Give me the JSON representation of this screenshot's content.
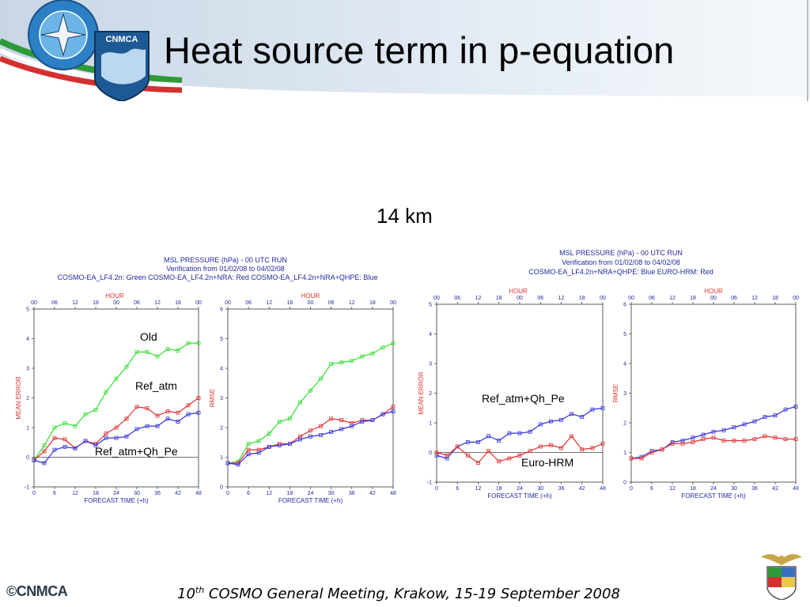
{
  "slide": {
    "title": "Heat source term in p-equation",
    "subtitle": "14 km",
    "logo_text": "CNMCA",
    "copyright": "©CNMCA",
    "footer_ordinal": "10",
    "footer_sup": "th",
    "footer_rest": " COSMO General Meeting, Krakow,  15-19 September 2008"
  },
  "panels": {
    "left": {
      "caption": [
        "MSL PRESSURE (hPa) - 00 UTC RUN",
        "Verification from 01/02/08 to 04/02/08",
        "COSMO-EA_LF4.2n: Green  COSMO-EA_LF4.2n+NRA: Red  COSMO-EA_LF4.2n+NRA+QHPE: Blue"
      ],
      "annotations": [
        "Old",
        "Ref_atm",
        "Ref_atm+Qh_Pe"
      ]
    },
    "right": {
      "caption": [
        "MSL PRESSURE (hPa) - 00 UTC RUN",
        "Verification from 01/02/08 to 04/02/08",
        "COSMO-EA_LF4.2n+NRA+QHPE: Blue  EURO-HRM: Red"
      ],
      "annotations": [
        "Ref_atm+Qh_Pe",
        "Euro-HRM"
      ]
    }
  },
  "colors": {
    "green": "#33dd33",
    "red": "#e03030",
    "blue": "#3333dd",
    "axis_label": "#e03030",
    "tick_label": "#1f2aa0"
  },
  "chart_data": [
    {
      "type": "line",
      "title": "",
      "xlabel": "FORECAST TIME (+h)",
      "top_label": "HOUR",
      "ylabel": "MEAN ERROR",
      "x": [
        0,
        3,
        6,
        9,
        12,
        15,
        18,
        21,
        24,
        27,
        30,
        33,
        36,
        39,
        42,
        45,
        48
      ],
      "xticks": [
        "0",
        "6",
        "12",
        "18",
        "24",
        "30",
        "36",
        "42",
        "48"
      ],
      "top_ticks": [
        "00",
        "06",
        "12",
        "18",
        "00",
        "06",
        "12",
        "18",
        "00"
      ],
      "ylim": [
        -1,
        5
      ],
      "yticks": [
        "-1",
        "0",
        "1",
        "2",
        "3",
        "4",
        "5"
      ],
      "zero_line": true,
      "series": [
        {
          "name": "COSMO-EA_LF4.2n",
          "color": "green",
          "values": [
            -0.1,
            0.4,
            1.0,
            1.15,
            1.05,
            1.45,
            1.6,
            2.2,
            2.65,
            3.05,
            3.55,
            3.55,
            3.4,
            3.65,
            3.6,
            3.85,
            3.85
          ]
        },
        {
          "name": "COSMO-EA_LF4.2n+NRA",
          "color": "red",
          "values": [
            -0.1,
            0.2,
            0.65,
            0.6,
            0.3,
            0.55,
            0.45,
            0.8,
            1.0,
            1.3,
            1.7,
            1.65,
            1.4,
            1.55,
            1.5,
            1.75,
            2.0
          ]
        },
        {
          "name": "COSMO-EA_LF4.2n+NRA+QHPE",
          "color": "blue",
          "values": [
            -0.1,
            -0.2,
            0.25,
            0.35,
            0.3,
            0.55,
            0.4,
            0.65,
            0.65,
            0.7,
            0.95,
            1.05,
            1.05,
            1.3,
            1.2,
            1.45,
            1.5
          ]
        }
      ]
    },
    {
      "type": "line",
      "title": "",
      "xlabel": "FORECAST TIME (+h)",
      "top_label": "HOUR",
      "ylabel": "RMSE",
      "x": [
        0,
        3,
        6,
        9,
        12,
        15,
        18,
        21,
        24,
        27,
        30,
        33,
        36,
        39,
        42,
        45,
        48
      ],
      "xticks": [
        "0",
        "6",
        "12",
        "18",
        "24",
        "30",
        "36",
        "42",
        "48"
      ],
      "top_ticks": [
        "00",
        "06",
        "12",
        "18",
        "00",
        "06",
        "12",
        "18",
        "00"
      ],
      "ylim": [
        0,
        6
      ],
      "yticks": [
        "0",
        "1",
        "2",
        "3",
        "4",
        "5",
        "6"
      ],
      "zero_line": false,
      "series": [
        {
          "name": "COSMO-EA_LF4.2n",
          "color": "green",
          "values": [
            0.8,
            0.85,
            1.45,
            1.55,
            1.8,
            2.2,
            2.3,
            2.85,
            3.25,
            3.65,
            4.15,
            4.2,
            4.25,
            4.4,
            4.5,
            4.7,
            4.85
          ]
        },
        {
          "name": "COSMO-EA_LF4.2n+NRA",
          "color": "red",
          "values": [
            0.8,
            0.8,
            1.25,
            1.25,
            1.35,
            1.45,
            1.45,
            1.7,
            1.9,
            2.05,
            2.3,
            2.25,
            2.15,
            2.25,
            2.25,
            2.45,
            2.7
          ]
        },
        {
          "name": "COSMO-EA_LF4.2n+NRA+QHPE",
          "color": "blue",
          "values": [
            0.8,
            0.75,
            1.1,
            1.15,
            1.35,
            1.4,
            1.45,
            1.6,
            1.7,
            1.75,
            1.85,
            1.95,
            2.05,
            2.2,
            2.25,
            2.45,
            2.55
          ]
        }
      ]
    },
    {
      "type": "line",
      "title": "",
      "xlabel": "FORECAST TIME (+h)",
      "top_label": "HOUR",
      "ylabel": "MEAN ERROR",
      "x": [
        0,
        3,
        6,
        9,
        12,
        15,
        18,
        21,
        24,
        27,
        30,
        33,
        36,
        39,
        42,
        45,
        48
      ],
      "xticks": [
        "0",
        "6",
        "12",
        "18",
        "24",
        "30",
        "36",
        "42",
        "48"
      ],
      "top_ticks": [
        "00",
        "06",
        "12",
        "18",
        "00",
        "06",
        "12",
        "18",
        "00"
      ],
      "ylim": [
        -1,
        5
      ],
      "yticks": [
        "-1",
        "0",
        "1",
        "2",
        "3",
        "4",
        "5"
      ],
      "zero_line": true,
      "series": [
        {
          "name": "COSMO-EA_LF4.2n+NRA+QHPE",
          "color": "blue",
          "values": [
            -0.1,
            -0.2,
            0.2,
            0.35,
            0.35,
            0.55,
            0.4,
            0.65,
            0.65,
            0.7,
            0.95,
            1.05,
            1.1,
            1.3,
            1.2,
            1.45,
            1.5
          ]
        },
        {
          "name": "EURO-HRM",
          "color": "red",
          "values": [
            0.0,
            -0.1,
            0.2,
            -0.1,
            -0.35,
            0.05,
            -0.3,
            -0.2,
            -0.1,
            0.05,
            0.2,
            0.25,
            0.15,
            0.55,
            0.1,
            0.15,
            0.3
          ]
        }
      ]
    },
    {
      "type": "line",
      "title": "",
      "xlabel": "FORECAST TIME (+h)",
      "top_label": "HOUR",
      "ylabel": "RMSE",
      "x": [
        0,
        3,
        6,
        9,
        12,
        15,
        18,
        21,
        24,
        27,
        30,
        33,
        36,
        39,
        42,
        45,
        48
      ],
      "xticks": [
        "0",
        "6",
        "12",
        "18",
        "24",
        "30",
        "36",
        "42",
        "48"
      ],
      "top_ticks": [
        "00",
        "06",
        "12",
        "18",
        "00",
        "06",
        "12",
        "18",
        "00"
      ],
      "ylim": [
        0,
        6
      ],
      "yticks": [
        "0",
        "1",
        "2",
        "3",
        "4",
        "5",
        "6"
      ],
      "zero_line": false,
      "series": [
        {
          "name": "COSMO-EA_LF4.2n+NRA+QHPE",
          "color": "blue",
          "values": [
            0.8,
            0.85,
            1.05,
            1.1,
            1.35,
            1.4,
            1.5,
            1.6,
            1.7,
            1.75,
            1.85,
            1.95,
            2.05,
            2.2,
            2.25,
            2.45,
            2.55
          ]
        },
        {
          "name": "EURO-HRM",
          "color": "red",
          "values": [
            0.8,
            0.8,
            1.0,
            1.1,
            1.3,
            1.3,
            1.35,
            1.45,
            1.5,
            1.4,
            1.4,
            1.4,
            1.45,
            1.55,
            1.5,
            1.45,
            1.45
          ]
        }
      ]
    }
  ]
}
